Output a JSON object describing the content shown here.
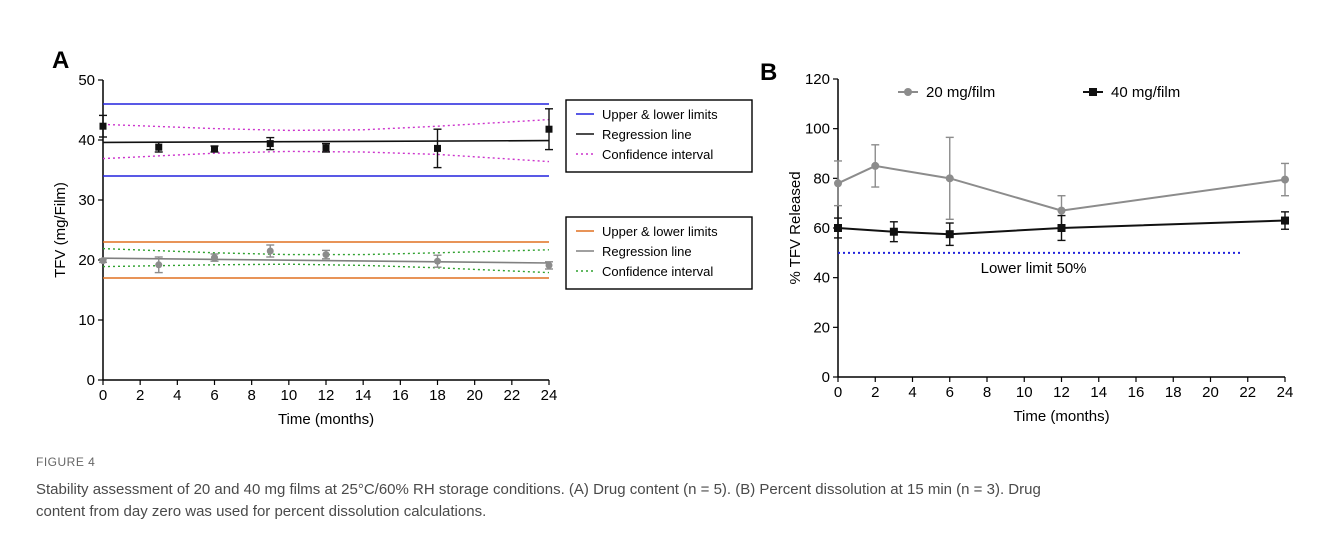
{
  "chart_data": [
    {
      "panel": "A",
      "type": "scatter",
      "xlabel": "Time (months)",
      "ylabel": "TFV (mg/Film)",
      "xlim": [
        0,
        24
      ],
      "ylim": [
        0,
        50
      ],
      "xticks": [
        0,
        2,
        4,
        6,
        8,
        10,
        12,
        14,
        16,
        18,
        20,
        22,
        24
      ],
      "yticks": [
        0,
        10,
        20,
        30,
        40,
        50
      ],
      "grid": false,
      "legend_placement": "right",
      "groups": [
        {
          "legend": [
            "Upper & lower limits",
            "Regression line",
            "Confidence interval"
          ],
          "colors": {
            "limits": "#2222dd",
            "regression": "#111111",
            "ci": "#cc33cc"
          },
          "points": {
            "x": [
              0,
              3,
              6,
              9,
              12,
              18,
              24
            ],
            "y": [
              42.3,
              38.8,
              38.5,
              39.4,
              38.7,
              38.6,
              41.8
            ],
            "err": [
              1.8,
              0.8,
              0.5,
              1.0,
              0.7,
              3.2,
              3.4
            ]
          },
          "limits": [
            46,
            34
          ],
          "regression": [
            [
              0,
              39.6
            ],
            [
              24,
              39.9
            ]
          ],
          "ci_upper": [
            [
              0,
              42.6
            ],
            [
              6,
              41.9
            ],
            [
              10,
              41.6
            ],
            [
              14,
              41.7
            ],
            [
              18,
              42.3
            ],
            [
              24,
              43.4
            ]
          ],
          "ci_lower": [
            [
              0,
              36.9
            ],
            [
              6,
              37.8
            ],
            [
              10,
              38.1
            ],
            [
              14,
              38.0
            ],
            [
              18,
              37.6
            ],
            [
              24,
              36.4
            ]
          ]
        },
        {
          "legend": [
            "Upper & lower limits",
            "Regression line",
            "Confidence interval"
          ],
          "colors": {
            "limits": "#e07020",
            "regression": "#808080",
            "ci": "#2ea02e"
          },
          "points": {
            "x": [
              0,
              3,
              6,
              9,
              12,
              18,
              24
            ],
            "y": [
              19.9,
              19.2,
              20.4,
              21.5,
              20.9,
              19.8,
              19.1
            ],
            "err": [
              0.3,
              1.3,
              0.6,
              1.0,
              0.7,
              1.0,
              0.6
            ]
          },
          "limits": [
            23,
            17
          ],
          "regression": [
            [
              0,
              20.3
            ],
            [
              24,
              19.5
            ]
          ],
          "ci_upper": [
            [
              0,
              21.9
            ],
            [
              6,
              21.2
            ],
            [
              10,
              20.9
            ],
            [
              14,
              20.9
            ],
            [
              18,
              21.2
            ],
            [
              24,
              21.7
            ]
          ],
          "ci_lower": [
            [
              0,
              18.9
            ],
            [
              6,
              19.2
            ],
            [
              10,
              19.3
            ],
            [
              14,
              19.1
            ],
            [
              18,
              18.7
            ],
            [
              24,
              17.9
            ]
          ]
        }
      ]
    },
    {
      "panel": "B",
      "type": "line",
      "xlabel": "Time (months)",
      "ylabel": "% TFV Released",
      "xlim": [
        0,
        24
      ],
      "ylim": [
        0,
        120
      ],
      "xticks": [
        0,
        2,
        4,
        6,
        8,
        10,
        12,
        14,
        16,
        18,
        20,
        22,
        24
      ],
      "yticks": [
        0,
        20,
        40,
        60,
        80,
        100,
        120
      ],
      "grid": false,
      "legend_placement": "top",
      "series": [
        {
          "name": "20 mg/film",
          "color": "#8c8c8c",
          "marker": "circle",
          "x": [
            0,
            2,
            6,
            12,
            24
          ],
          "y": [
            78,
            85,
            80,
            67,
            79.5
          ],
          "err": [
            9,
            8.5,
            16.5,
            6,
            6.5
          ]
        },
        {
          "name": "40 mg/film",
          "color": "#111111",
          "marker": "square",
          "x": [
            0,
            3,
            6,
            12,
            24
          ],
          "y": [
            60,
            58.5,
            57.5,
            60,
            63
          ],
          "err": [
            4,
            4,
            4.5,
            5,
            3.5
          ]
        }
      ],
      "reference_line": {
        "y": 50,
        "label": "Lower limit 50%",
        "color": "#2222dd"
      }
    }
  ],
  "caption": {
    "label": "FIGURE 4",
    "lines": [
      "Stability assessment of 20 and 40 mg films at 25°C/60% RH storage conditions. (A) Drug content (n = 5). (B) Percent dissolution at 15 min (n = 3). Drug",
      "content from day zero was used for percent dissolution calculations."
    ]
  }
}
